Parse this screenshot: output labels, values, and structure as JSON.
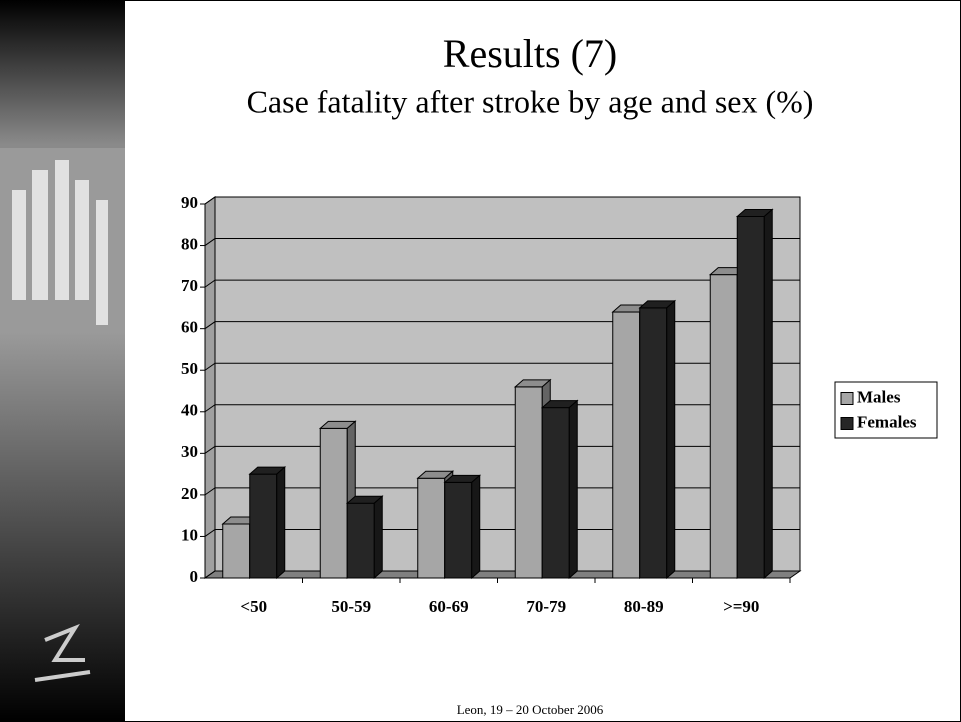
{
  "title": "Results (7)",
  "subtitle": "Case fatality after stroke by age and sex (%)",
  "footer": "Leon, 19 – 20 October 2006",
  "chart_data": {
    "type": "bar",
    "categories": [
      "<50",
      "50-59",
      "60-69",
      "70-79",
      "80-89",
      ">=90"
    ],
    "series": [
      {
        "name": "Males",
        "color": "#a6a6a6",
        "values": [
          13,
          36,
          24,
          46,
          64,
          73
        ]
      },
      {
        "name": "Females",
        "color": "#262626",
        "values": [
          25,
          18,
          23,
          41,
          65,
          87
        ]
      }
    ],
    "ylim": [
      0,
      90
    ],
    "yticks": [
      0,
      10,
      20,
      30,
      40,
      50,
      60,
      70,
      80,
      90
    ],
    "grid": true,
    "legend": "right"
  }
}
